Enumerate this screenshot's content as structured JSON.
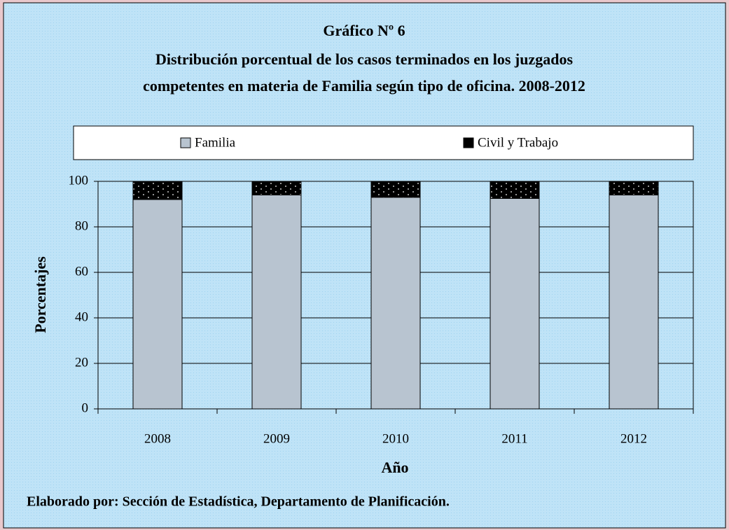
{
  "chart_data": {
    "type": "stacked_bar",
    "title": "Gráfico Nº 6",
    "subtitle": [
      "Distribución porcentual de los casos terminados en los juzgados",
      "competentes en materia de Familia según tipo de oficina. 2008-2012"
    ],
    "y_label": "Porcentajes",
    "x_label": "Año",
    "note": "Elaborado por: Sección de Estadística, Departamento de Planificación.",
    "categories": [
      "2008",
      "2009",
      "2010",
      "2011",
      "2012"
    ],
    "series": [
      {
        "name": "Familia",
        "color": "#b8c4d0",
        "values": [
          92,
          94,
          93,
          92.5,
          94
        ]
      },
      {
        "name": "Civil y Trabajo",
        "color": "#000000",
        "values": [
          8,
          6,
          7,
          7.5,
          6
        ]
      }
    ],
    "ylim": [
      0,
      100
    ],
    "yticks": [
      0,
      20,
      40,
      60,
      80,
      100
    ],
    "grid": true,
    "legend": "top"
  }
}
